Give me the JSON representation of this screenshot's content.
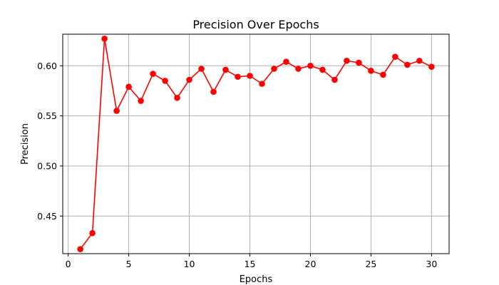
{
  "chart_data": {
    "type": "line",
    "title": "Precision Over Epochs",
    "xlabel": "Epochs",
    "ylabel": "Precision",
    "xlim": [
      -0.45,
      31.45
    ],
    "ylim": [
      0.4125,
      0.6315
    ],
    "xticks": [
      0,
      5,
      10,
      15,
      20,
      25,
      30
    ],
    "yticks": [
      0.45,
      0.5,
      0.55,
      0.6
    ],
    "ytick_labels": [
      "0.45",
      "0.50",
      "0.55",
      "0.60"
    ],
    "grid": true,
    "series": [
      {
        "color": "#ff0000",
        "marker": "circle",
        "x": [
          1,
          2,
          3,
          4,
          5,
          6,
          7,
          8,
          9,
          10,
          11,
          12,
          13,
          14,
          15,
          16,
          17,
          18,
          19,
          20,
          21,
          22,
          23,
          24,
          25,
          26,
          27,
          28,
          29,
          30
        ],
        "values": [
          0.417,
          0.433,
          0.627,
          0.555,
          0.579,
          0.565,
          0.592,
          0.585,
          0.568,
          0.586,
          0.597,
          0.574,
          0.596,
          0.589,
          0.59,
          0.582,
          0.597,
          0.604,
          0.597,
          0.6,
          0.596,
          0.586,
          0.605,
          0.603,
          0.595,
          0.591,
          0.609,
          0.601,
          0.605,
          0.599
        ]
      }
    ]
  }
}
